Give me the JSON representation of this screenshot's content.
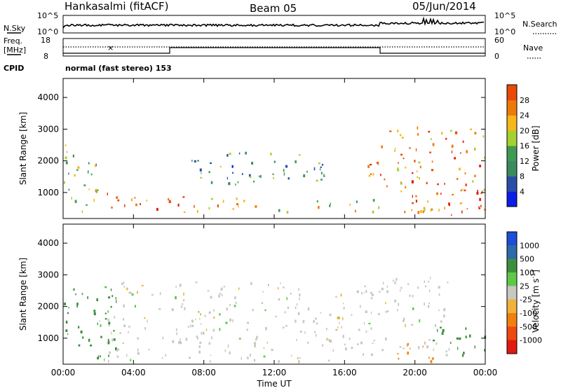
{
  "header": {
    "station": "Hankasalmi (fitACF)",
    "beam": "Beam 05",
    "date": "05/Jun/2014"
  },
  "panels": {
    "nsky_label": "N.Sky",
    "nsearch_label": "N.Search",
    "freq_label_1": "Freq.",
    "freq_label_2": "[MHz]",
    "nave_label": "Nave",
    "cpid_label": "CPID",
    "cpid_text": "normal (fast stereo) 153",
    "nsky_ticks": [
      "10^5",
      "10^0"
    ],
    "nsearch_ticks": [
      "10^5",
      "10^0"
    ],
    "freq_ticks": [
      "18",
      "8"
    ],
    "nave_ticks": [
      "60",
      "0"
    ]
  },
  "axes": {
    "ylabel": "Slant Range [km]",
    "xlabel": "Time UT",
    "yticks": [
      "1000",
      "2000",
      "3000",
      "4000"
    ],
    "xticks": [
      "00:00",
      "04:00",
      "08:00",
      "12:00",
      "16:00",
      "20:00",
      "00:00"
    ]
  },
  "colors": {
    "power": [
      "#0a1ee6",
      "#2a4ea8",
      "#3a8a60",
      "#3f9b52",
      "#a6d030",
      "#f5b71a",
      "#ef7a0c",
      "#e84a08",
      "#e01f05"
    ],
    "velocity_pos": [
      "#1a4fd8",
      "#2f6aa8",
      "#3d8f3e",
      "#5fc84a"
    ],
    "velocity_neg": [
      "#f0b23a",
      "#f08010",
      "#ec4a10",
      "#e01a10"
    ],
    "gray": "#c8c8c0"
  },
  "chart_data": [
    {
      "type": "heatmap",
      "title": "",
      "xlabel": "Time UT",
      "ylabel": "Slant Range [km]",
      "xlim": [
        "00:00",
        "24:00"
      ],
      "ylim": [
        180,
        4600
      ],
      "colorbar": {
        "label": "Power [dB]",
        "ticks": [
          "4",
          "8",
          "12",
          "16",
          "20",
          "24",
          "28"
        ],
        "range": [
          0,
          30
        ]
      },
      "bands": [
        {
          "time_range": [
            "00:00",
            "02:00"
          ],
          "range_km": [
            300,
            2700
          ],
          "value": 14
        },
        {
          "time_range": [
            "02:00",
            "06:30"
          ],
          "range_km": [
            500,
            1000
          ],
          "value": 24
        },
        {
          "time_range": [
            "06:30",
            "12:00"
          ],
          "range_km": [
            400,
            900
          ],
          "value": 22
        },
        {
          "time_range": [
            "12:00",
            "18:00"
          ],
          "range_km": [
            400,
            800
          ],
          "value": 18
        },
        {
          "time_range": [
            "07:00",
            "15:00"
          ],
          "range_km": [
            1200,
            2300
          ],
          "value": 10
        },
        {
          "time_range": [
            "16:00",
            "18:00"
          ],
          "range_km": [
            1400,
            2000
          ],
          "value": 22
        },
        {
          "time_range": [
            "18:00",
            "24:00"
          ],
          "range_km": [
            400,
            3100
          ],
          "value": 22
        },
        {
          "time_range": [
            "21:30",
            "24:00"
          ],
          "range_km": [
            300,
            1100
          ],
          "value": 28
        }
      ]
    },
    {
      "type": "heatmap",
      "title": "",
      "xlabel": "Time UT",
      "ylabel": "Slant Range [km]",
      "xlim": [
        "00:00",
        "24:00"
      ],
      "ylim": [
        180,
        4600
      ],
      "colorbar": {
        "label": "Velocity [m s^-1]",
        "ticks": [
          "1000",
          "500",
          "100",
          "25",
          "-25",
          "-100",
          "-500",
          "-1000"
        ],
        "range": [
          -1200,
          1200
        ]
      },
      "bands": [
        {
          "time_range": [
            "00:00",
            "03:00"
          ],
          "range_km": [
            300,
            2700
          ],
          "value": 200
        },
        {
          "time_range": [
            "02:00",
            "18:00"
          ],
          "range_km": [
            300,
            2800
          ],
          "value": 0
        },
        {
          "time_range": [
            "18:00",
            "22:00"
          ],
          "range_km": [
            500,
            3100
          ],
          "value": 0
        },
        {
          "time_range": [
            "19:00",
            "21:00"
          ],
          "range_km": [
            300,
            900
          ],
          "value": -200
        },
        {
          "time_range": [
            "21:00",
            "24:00"
          ],
          "range_km": [
            400,
            1400
          ],
          "value": 150
        }
      ]
    }
  ]
}
